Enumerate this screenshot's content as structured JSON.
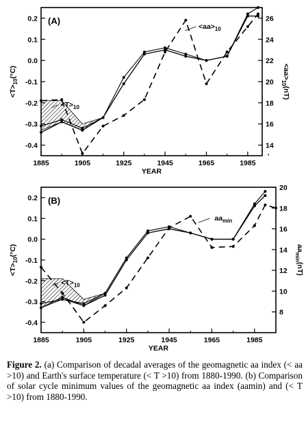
{
  "chart_data": [
    {
      "type": "line",
      "panel_label": "(A)",
      "xlabel": "YEAR",
      "ylabel_left": "<T>10(°C)",
      "ylabel_right": "<aa>10(nT)",
      "xlim": [
        1885,
        1992
      ],
      "xticks": [
        "1885",
        "1905",
        "1925",
        "1945",
        "1965",
        "1985"
      ],
      "ylim_left": [
        -0.45,
        0.25
      ],
      "yticks_left": [
        "0.2",
        "0.1",
        "0.0",
        "-0.1",
        "-0.2",
        "-0.3",
        "-0.4"
      ],
      "ylim_right": [
        13,
        27
      ],
      "yticks_right": [
        "26",
        "24",
        "22",
        "20",
        "18",
        "16",
        "14"
      ],
      "grid": false,
      "annotations": [
        "<aa>10",
        "<T>10"
      ],
      "series": [
        {
          "x": [
            1885,
            1895,
            1905,
            1915,
            1925,
            1935,
            1945,
            1955,
            1965,
            1975,
            1985,
            1990
          ],
          "y": [
            -0.34,
            -0.29,
            -0.33,
            -0.27,
            -0.11,
            0.03,
            0.05,
            0.02,
            0.0,
            0.02,
            0.21,
            0.21
          ]
        },
        {
          "x": [
            1885,
            1895,
            1905,
            1915,
            1925,
            1935,
            1945,
            1955,
            1965,
            1975,
            1985,
            1990
          ],
          "y": [
            -0.31,
            -0.28,
            -0.32,
            -0.27,
            -0.08,
            0.04,
            0.06,
            0.03,
            0.0,
            0.02,
            0.22,
            0.25
          ]
        },
        {
          "x": [
            1885,
            1895,
            1905,
            1915,
            1925,
            1935,
            1945,
            1955,
            1965,
            1975,
            1985,
            1990
          ],
          "y": [
            18.2,
            18.3,
            13.2,
            15.8,
            16.8,
            18.3,
            22.8,
            25.8,
            19.8,
            22.8,
            25.2,
            26.4
          ]
        }
      ],
      "shaded_band": {
        "x": [
          1885,
          1895,
          1905,
          1915
        ],
        "upper": [
          -0.19,
          -0.19,
          -0.3,
          -0.27
        ],
        "lower": [
          -0.33,
          -0.29,
          -0.33,
          -0.27
        ]
      }
    },
    {
      "type": "line",
      "panel_label": "(B)",
      "xlabel": "YEAR",
      "ylabel_left": "<T>10(°C)",
      "ylabel_right": "aamin(nT)",
      "xlim": [
        1885,
        1995
      ],
      "xticks": [
        "1885",
        "1905",
        "1925",
        "1945",
        "1965",
        "1985"
      ],
      "ylim_left": [
        -0.45,
        0.25
      ],
      "yticks_left": [
        "0.2",
        "0.1",
        "0.0",
        "-0.1",
        "-0.2",
        "-0.3",
        "-0.4"
      ],
      "ylim_right": [
        6,
        20
      ],
      "yticks_right": [
        "20",
        "18",
        "16",
        "14",
        "12",
        "10",
        "8"
      ],
      "grid": false,
      "annotations": [
        "aamin",
        "<T>10"
      ],
      "series": [
        {
          "x": [
            1885,
            1895,
            1905,
            1915,
            1925,
            1935,
            1945,
            1955,
            1965,
            1975,
            1985,
            1990
          ],
          "y": [
            -0.33,
            -0.28,
            -0.32,
            -0.27,
            -0.1,
            0.03,
            0.05,
            0.03,
            0.0,
            0.0,
            0.16,
            0.21
          ]
        },
        {
          "x": [
            1885,
            1895,
            1905,
            1915,
            1925,
            1935,
            1945,
            1955,
            1965,
            1975,
            1985,
            1990
          ],
          "y": [
            -0.31,
            -0.29,
            -0.31,
            -0.26,
            -0.09,
            0.04,
            0.06,
            0.03,
            0.0,
            0.0,
            0.17,
            0.23
          ]
        },
        {
          "x": [
            1885,
            1895,
            1905,
            1915,
            1925,
            1935,
            1945,
            1955,
            1965,
            1975,
            1985,
            1990,
            1995
          ],
          "y": [
            12.3,
            9.8,
            7.0,
            8.6,
            10.3,
            13.2,
            16.1,
            17.2,
            14.2,
            14.3,
            16.3,
            18.3,
            18.0
          ]
        }
      ],
      "shaded_band": {
        "x": [
          1885,
          1895,
          1905,
          1915
        ],
        "upper": [
          -0.19,
          -0.19,
          -0.29,
          -0.26
        ],
        "lower": [
          -0.33,
          -0.29,
          -0.32,
          -0.26
        ]
      }
    }
  ],
  "caption": {
    "lead": "Figure 2.",
    "text": " (a) Comparison of decadal averages of the geomagnetic aa index (< aa >10) and Earth's surface temperature (< T >10) from 1880-1990. (b) Comparison of solar cycle minimum values of the geomagnetic aa index (aamin) and (< T >10) from 1880-1990."
  }
}
